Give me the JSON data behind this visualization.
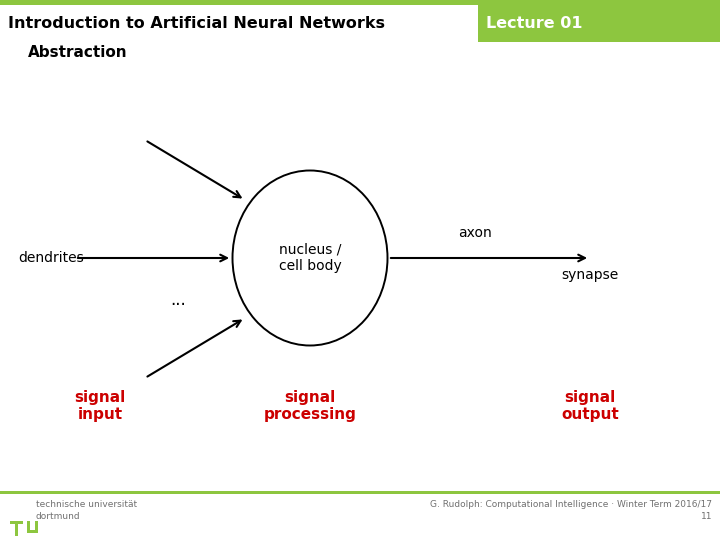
{
  "bg_color": "#ffffff",
  "header_bar_color": "#8dc63f",
  "header_title": "Introduction to Artificial Neural Networks",
  "header_lecture": "Lecture 01",
  "header_title_color": "#000000",
  "header_lecture_color": "#ffffff",
  "section_title": "Abstraction",
  "section_title_color": "#000000",
  "nucleus_label": "nucleus /\ncell body",
  "nucleus_label_color": "#000000",
  "axon_label": "axon",
  "synapse_label": "synapse",
  "dendrites_label": "dendrites",
  "dots_label": "...",
  "signal_input_label": "signal\ninput",
  "signal_processing_label": "signal\nprocessing",
  "signal_output_label": "signal\noutput",
  "signal_color": "#cc0000",
  "arrow_color": "#000000",
  "ellipse_color": "#000000",
  "footer_text1": "technische universität\ndortmund",
  "footer_text2": "G. Rudolph: Computational Intelligence · Winter Term 2016/17\n11",
  "footer_color": "#8dc63f",
  "footer_text_color": "#707070"
}
